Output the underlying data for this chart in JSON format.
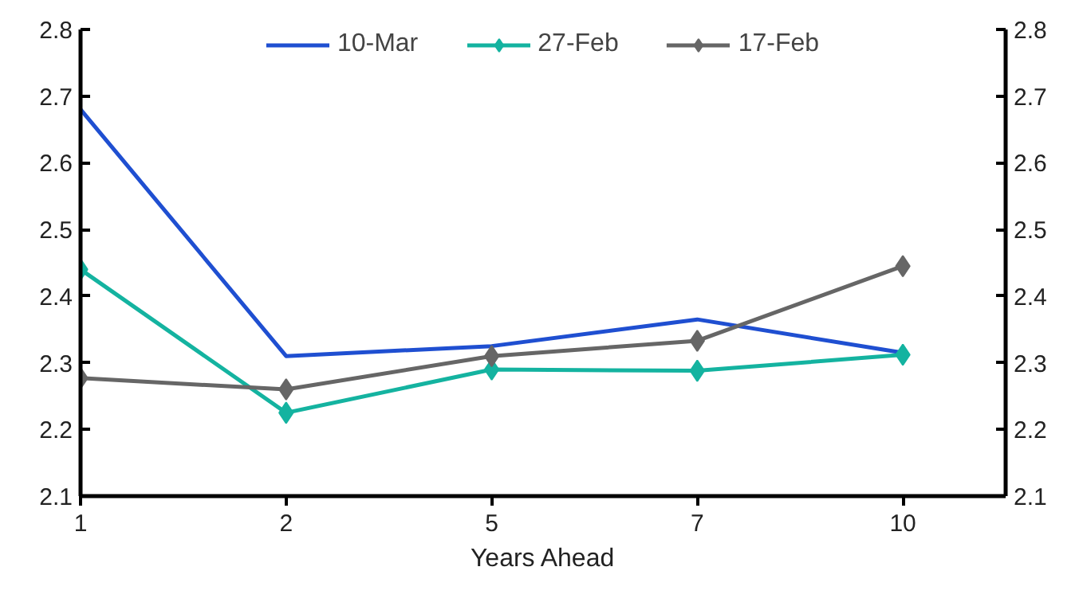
{
  "chart_data": {
    "type": "line",
    "xlabel": "Years Ahead",
    "categories": [
      "1",
      "2",
      "5",
      "7",
      "10"
    ],
    "series": [
      {
        "name": "10-Mar",
        "color": "#1f4fd1",
        "marker": "none",
        "values": [
          2.68,
          2.31,
          2.325,
          2.365,
          2.315
        ]
      },
      {
        "name": "27-Feb",
        "color": "#14b3a0",
        "marker": "diamond",
        "values": [
          2.44,
          2.225,
          2.29,
          2.288,
          2.312
        ]
      },
      {
        "name": "17-Feb",
        "color": "#666666",
        "marker": "diamond",
        "values": [
          2.277,
          2.26,
          2.31,
          2.333,
          2.445
        ]
      }
    ],
    "ylim": [
      2.1,
      2.8
    ],
    "yticks": [
      2.1,
      2.2,
      2.3,
      2.4,
      2.5,
      2.6,
      2.7,
      2.8
    ],
    "y2lim": [
      2.1,
      2.8
    ],
    "y2ticks": [
      2.1,
      2.2,
      2.3,
      2.4,
      2.5,
      2.6,
      2.7,
      2.8
    ],
    "grid": false,
    "legend": "top",
    "line_style": "solid"
  }
}
